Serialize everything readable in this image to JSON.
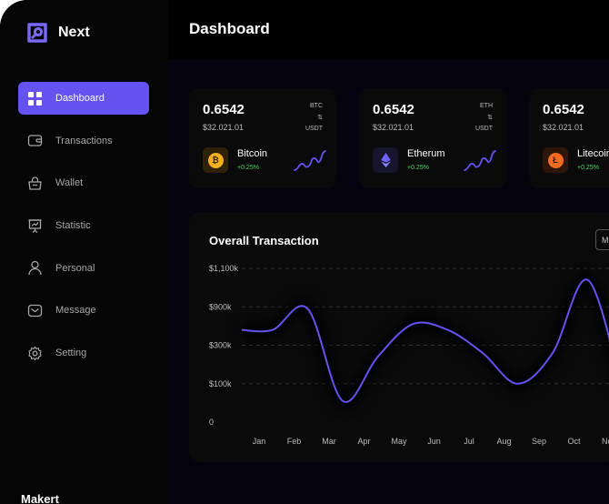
{
  "app": {
    "name": "Next"
  },
  "sidebar": {
    "items": [
      {
        "label": "Dashboard",
        "icon": "grid-icon",
        "active": true
      },
      {
        "label": "Transactions",
        "icon": "wallet-card-icon",
        "active": false
      },
      {
        "label": "Wallet",
        "icon": "bag-icon",
        "active": false
      },
      {
        "label": "Statistic",
        "icon": "presentation-chart-icon",
        "active": false
      },
      {
        "label": "Personal",
        "icon": "user-icon",
        "active": false
      },
      {
        "label": "Message",
        "icon": "message-icon",
        "active": false
      },
      {
        "label": "Setting",
        "icon": "gear-icon",
        "active": false
      }
    ]
  },
  "header": {
    "title": "Dashboard"
  },
  "coins": [
    {
      "price": "0.6542",
      "sub": "$32.021.01",
      "symbol": "BTC",
      "arrows": "⇅",
      "quote": "USDT",
      "name": "Bitcoin",
      "change": "+0.25%",
      "icon": "bitcoin-icon",
      "color": "#f2b01e",
      "bg": "#2e2108"
    },
    {
      "price": "0.6542",
      "sub": "$32.021.01",
      "symbol": "ETH",
      "arrows": "⇅",
      "quote": "USDT",
      "name": "Etherum",
      "change": "+0.25%",
      "icon": "ethereum-icon",
      "color": "#6f63f5",
      "bg": "#17152e"
    },
    {
      "price": "0.6542",
      "sub": "$32.021.01",
      "symbol": "",
      "arrows": "",
      "quote": "",
      "name": "Litecoin",
      "change": "+0.25%",
      "icon": "litecoin-icon",
      "color": "#f26b21",
      "bg": "#2e1508"
    }
  ],
  "overview": {
    "title": "Overall Transaction",
    "period_button": "M"
  },
  "chart_data": {
    "type": "line",
    "title": "Overall Transaction",
    "categories": [
      "Jan",
      "Feb",
      "Mar",
      "Apr",
      "May",
      "Jun",
      "Jul",
      "Aug",
      "Sep",
      "Oct",
      "Nov"
    ],
    "y_tick_labels": [
      "$1,100k",
      "$900k",
      "$300k",
      "$100k",
      "0"
    ],
    "y_tick_levels": [
      4,
      3,
      2,
      1,
      0
    ],
    "ylim": [
      0,
      4
    ],
    "series": [
      {
        "values": [
          2.4,
          2.95,
          0.55,
          1.7,
          2.55,
          2.4,
          1.8,
          1.0,
          1.8,
          3.7,
          0.85
        ]
      }
    ],
    "series_start": 2.4,
    "line_color": "#6552f0",
    "grid": true
  },
  "market": {
    "title": "Makert"
  }
}
